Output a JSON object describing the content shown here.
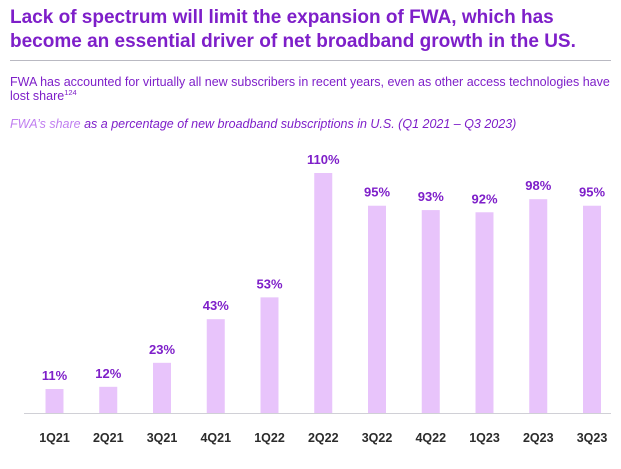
{
  "header": {
    "title": "Lack of spectrum will limit the expansion of FWA, which has become an essential driver of net broadband growth in the US.",
    "subtitle": "FWA has accounted for virtually all new subscribers in recent years, even as other access technologies have lost share",
    "footnote_ref": "124",
    "caption_series": "FWA’s share",
    "caption_rest": " as a percentage of new broadband subscriptions in U.S. (Q1 2021 – Q3 2023)"
  },
  "colors": {
    "accent": "#7e1fc9",
    "bar": "#e8c4fb",
    "axis": "#d0d0d6",
    "category_text": "#2b2b2b"
  },
  "chart_data": {
    "type": "bar",
    "title": "FWA’s share as a percentage of new broadband subscriptions in U.S. (Q1 2021 – Q3 2023)",
    "xlabel": "",
    "ylabel": "",
    "ylim": [
      0,
      110
    ],
    "categories": [
      "1Q21",
      "2Q21",
      "3Q21",
      "4Q21",
      "1Q22",
      "2Q22",
      "3Q22",
      "4Q22",
      "1Q23",
      "2Q23",
      "3Q23"
    ],
    "values": [
      11,
      12,
      23,
      43,
      53,
      110,
      95,
      93,
      92,
      98,
      95
    ],
    "value_labels": [
      "11%",
      "12%",
      "23%",
      "43%",
      "53%",
      "110%",
      "95%",
      "93%",
      "92%",
      "98%",
      "95%"
    ]
  }
}
